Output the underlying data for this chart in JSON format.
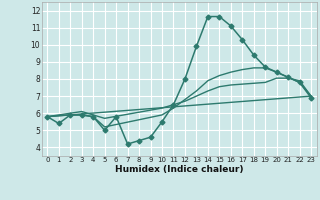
{
  "xlabel": "Humidex (Indice chaleur)",
  "xlim": [
    -0.5,
    23.5
  ],
  "ylim": [
    3.5,
    12.5
  ],
  "xticks": [
    0,
    1,
    2,
    3,
    4,
    5,
    6,
    7,
    8,
    9,
    10,
    11,
    12,
    13,
    14,
    15,
    16,
    17,
    18,
    19,
    20,
    21,
    22,
    23
  ],
  "yticks": [
    4,
    5,
    6,
    7,
    8,
    9,
    10,
    11,
    12
  ],
  "bg_color": "#cee8e8",
  "line_color": "#2d7a6e",
  "grid_color": "#ffffff",
  "lines": [
    {
      "x": [
        0,
        1,
        2,
        3,
        4,
        5,
        6,
        7,
        8,
        9,
        10,
        11,
        12,
        13,
        14,
        15,
        16,
        17,
        18,
        19,
        20,
        21,
        22,
        23
      ],
      "y": [
        5.8,
        5.4,
        5.9,
        5.9,
        5.8,
        5.0,
        5.8,
        4.2,
        4.4,
        4.6,
        5.5,
        6.5,
        8.0,
        9.9,
        11.65,
        11.65,
        11.1,
        10.3,
        9.4,
        8.7,
        8.4,
        8.1,
        7.8,
        6.9
      ],
      "marker": "D",
      "markersize": 2.5,
      "linewidth": 1.1
    },
    {
      "x": [
        0,
        2,
        3,
        4,
        5,
        10,
        11,
        12,
        13,
        14,
        15,
        16,
        17,
        18,
        19,
        20,
        21,
        22,
        23
      ],
      "y": [
        5.8,
        6.0,
        6.1,
        5.9,
        5.7,
        6.3,
        6.5,
        6.7,
        7.0,
        7.3,
        7.55,
        7.65,
        7.7,
        7.75,
        7.8,
        8.05,
        8.05,
        7.9,
        7.0
      ],
      "marker": null,
      "markersize": 0,
      "linewidth": 1.0
    },
    {
      "x": [
        0,
        2,
        3,
        4,
        5,
        10,
        11,
        12,
        13,
        14,
        15,
        16,
        17,
        18,
        19,
        20,
        21,
        22,
        23
      ],
      "y": [
        5.8,
        5.9,
        5.9,
        5.8,
        5.2,
        5.9,
        6.3,
        6.8,
        7.3,
        7.9,
        8.2,
        8.4,
        8.55,
        8.65,
        8.65,
        8.4,
        8.1,
        7.8,
        7.0
      ],
      "marker": null,
      "markersize": 0,
      "linewidth": 1.0
    },
    {
      "x": [
        0,
        23
      ],
      "y": [
        5.8,
        7.0
      ],
      "marker": null,
      "markersize": 0,
      "linewidth": 1.0
    }
  ]
}
